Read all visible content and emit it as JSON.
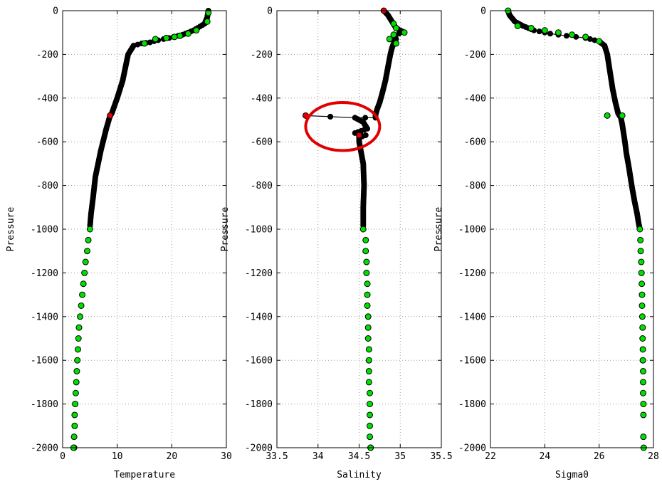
{
  "chart_data": [
    {
      "type": "scatter",
      "panel": "temperature",
      "xlabel": "Temperature",
      "ylabel": "Pressure",
      "xlim": [
        0,
        30
      ],
      "ylim": [
        -2000,
        0
      ],
      "xticks": [
        0,
        10,
        20,
        30
      ],
      "yticks": [
        0,
        -200,
        -400,
        -600,
        -800,
        -1000,
        -1200,
        -1400,
        -1600,
        -1800,
        -2000
      ],
      "grid": true,
      "colors": {
        "good": "#00e000",
        "bad": "#e00000",
        "dense": "#000000"
      },
      "series": [
        {
          "role": "profile-line",
          "x": [
            26.7,
            26.5,
            26,
            24,
            22,
            19.5,
            17.5,
            16,
            14.5,
            13,
            12,
            11.5,
            11,
            10,
            9,
            8.7,
            8,
            7,
            6,
            5.6,
            5.2,
            5
          ],
          "y": [
            0,
            -30,
            -60,
            -90,
            -110,
            -125,
            -135,
            -145,
            -150,
            -160,
            -200,
            -260,
            -320,
            -400,
            -470,
            -480,
            -540,
            -640,
            -760,
            -850,
            -930,
            -990
          ]
        },
        {
          "role": "good-flag",
          "x": [
            26.7,
            26.5,
            24.5,
            23,
            21.5,
            20.5,
            19,
            17,
            15,
            5,
            4.7,
            4.5,
            4.2,
            4,
            3.8,
            3.6,
            3.4,
            3.2,
            3,
            2.9,
            2.8,
            2.7,
            2.6,
            2.5,
            2.4,
            2.3,
            2.2,
            2.2,
            2.1,
            2.1,
            2
          ],
          "y": [
            -10,
            -50,
            -90,
            -105,
            -115,
            -120,
            -125,
            -130,
            -150,
            -1000,
            -1050,
            -1100,
            -1150,
            -1200,
            -1250,
            -1300,
            -1350,
            -1400,
            -1450,
            -1500,
            -1550,
            -1600,
            -1650,
            -1700,
            -1750,
            -1800,
            -1850,
            -1900,
            -1950,
            -2000,
            -2000
          ]
        },
        {
          "role": "bad-flag",
          "x": [
            8.7
          ],
          "y": [
            -480
          ]
        }
      ]
    },
    {
      "type": "scatter",
      "panel": "salinity",
      "xlabel": "Salinity",
      "ylabel": "Pressure",
      "xlim": [
        33.5,
        35.5
      ],
      "ylim": [
        -2000,
        0
      ],
      "xticks": [
        33.5,
        34,
        34.5,
        35,
        35.5
      ],
      "yticks": [
        0,
        -200,
        -400,
        -600,
        -800,
        -1000,
        -1200,
        -1400,
        -1600,
        -1800,
        -2000
      ],
      "grid": true,
      "colors": {
        "good": "#00e000",
        "bad": "#e00000",
        "dense": "#000000",
        "highlight": "#e00000"
      },
      "highlight_ellipse": {
        "center_x": 34.3,
        "center_y": -530,
        "rx": 0.45,
        "ry": 110
      },
      "series": [
        {
          "role": "profile-line",
          "x": [
            34.8,
            34.85,
            34.9,
            34.95,
            35.05,
            34.92,
            34.95,
            34.92,
            34.9,
            34.88,
            34.85,
            34.82,
            34.78,
            34.75,
            34.72,
            34.7,
            34.7,
            34.45,
            33.85,
            34.45,
            34.55,
            34.6,
            34.45,
            34.58,
            34.5,
            34.5,
            34.55,
            34.56,
            34.55,
            34.55
          ],
          "y": [
            0,
            -20,
            -50,
            -80,
            -100,
            -110,
            -130,
            -150,
            -170,
            -200,
            -260,
            -320,
            -380,
            -420,
            -450,
            -475,
            -490,
            -490,
            -480,
            -490,
            -510,
            -540,
            -560,
            -570,
            -580,
            -600,
            -700,
            -800,
            -900,
            -990
          ]
        },
        {
          "role": "good-flag",
          "x": [
            34.92,
            34.95,
            35.05,
            34.92,
            34.87,
            34.95,
            34.55,
            34.58,
            34.58,
            34.59,
            34.59,
            34.6,
            34.6,
            34.6,
            34.61,
            34.61,
            34.61,
            34.62,
            34.62,
            34.62,
            34.62,
            34.63,
            34.63,
            34.63,
            34.63,
            34.63,
            34.64,
            34.64,
            34.64
          ],
          "y": [
            -60,
            -80,
            -100,
            -110,
            -130,
            -150,
            -1000,
            -1050,
            -1100,
            -1150,
            -1200,
            -1250,
            -1300,
            -1350,
            -1400,
            -1450,
            -1500,
            -1550,
            -1600,
            -1650,
            -1700,
            -1750,
            -1800,
            -1850,
            -1900,
            -1950,
            -2000,
            -2000,
            -2000
          ]
        },
        {
          "role": "bad-flag",
          "x": [
            34.8,
            33.85,
            34.5
          ],
          "y": [
            0,
            -480,
            -570
          ]
        }
      ]
    },
    {
      "type": "scatter",
      "panel": "sigma0",
      "xlabel": "Sigma0",
      "ylabel": "Pressure",
      "xlim": [
        22,
        28
      ],
      "ylim": [
        -2000,
        0
      ],
      "xticks": [
        22,
        24,
        26,
        28
      ],
      "yticks": [
        0,
        -200,
        -400,
        -600,
        -800,
        -1000,
        -1200,
        -1400,
        -1600,
        -1800,
        -2000
      ],
      "grid": true,
      "colors": {
        "good": "#00e000",
        "bad": "#e00000",
        "dense": "#000000"
      },
      "series": [
        {
          "role": "profile-line",
          "x": [
            22.65,
            22.7,
            22.9,
            23.2,
            23.6,
            24.2,
            24.8,
            25.5,
            26,
            26.2,
            26.3,
            26.4,
            26.5,
            26.6,
            26.7,
            26.8,
            26.85,
            26.9,
            26.95,
            27,
            27.1,
            27.2,
            27.3,
            27.4,
            27.45,
            27.5
          ],
          "y": [
            0,
            -20,
            -50,
            -70,
            -90,
            -105,
            -115,
            -125,
            -140,
            -160,
            -200,
            -280,
            -360,
            -420,
            -470,
            -490,
            -520,
            -560,
            -600,
            -650,
            -720,
            -800,
            -870,
            -930,
            -970,
            -1000
          ]
        },
        {
          "role": "good-flag",
          "x": [
            22.65,
            23,
            23.5,
            24,
            24.5,
            25,
            25.5,
            26,
            26.3,
            26.85,
            27.5,
            27.52,
            27.53,
            27.55,
            27.56,
            27.57,
            27.58,
            27.58,
            27.59,
            27.6,
            27.6,
            27.61,
            27.61,
            27.62,
            27.62,
            27.62,
            27.63,
            27.63,
            27.63,
            27.64
          ],
          "y": [
            0,
            -70,
            -80,
            -90,
            -100,
            -110,
            -120,
            -140,
            -480,
            -480,
            -1000,
            -1050,
            -1100,
            -1150,
            -1200,
            -1250,
            -1300,
            -1350,
            -1400,
            -1450,
            -1500,
            -1550,
            -1600,
            -1650,
            -1700,
            -1750,
            -1800,
            -1850,
            -1950,
            -2000
          ]
        },
        {
          "role": "bad-flag",
          "x": [],
          "y": []
        }
      ]
    }
  ]
}
